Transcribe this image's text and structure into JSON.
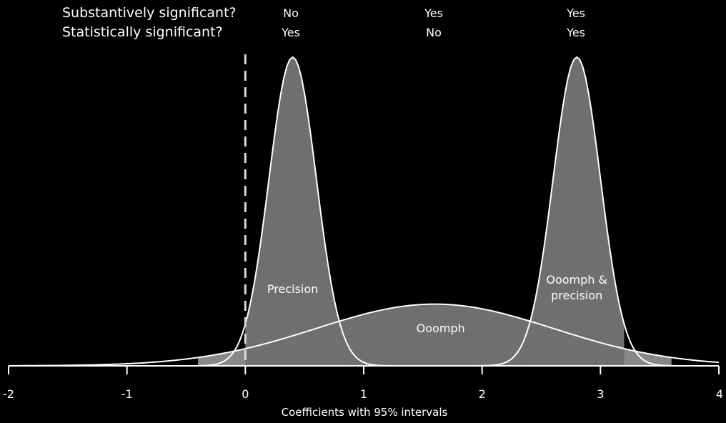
{
  "header": {
    "row1_label": "Substantively significant?",
    "row2_label": "Statistically significant?",
    "columns": [
      {
        "center": 0.4,
        "substantive": "No",
        "statistical": "Yes"
      },
      {
        "center": 1.6,
        "substantive": "Yes",
        "statistical": "No"
      },
      {
        "center": 2.8,
        "substantive": "Yes",
        "statistical": "Yes"
      }
    ]
  },
  "chart_data": {
    "type": "area",
    "xlabel": "Coefficients with 95% intervals",
    "xlim": [
      -2,
      4
    ],
    "ticks": [
      -2,
      -1,
      0,
      1,
      2,
      3,
      4
    ],
    "tick_labels": [
      "-2",
      "-1",
      "0",
      "1",
      "2",
      "3",
      "4"
    ],
    "reference_line_x": 0,
    "series": [
      {
        "label": "Precision",
        "mean": 0.4,
        "sd": 0.2,
        "interval": [
          0.0,
          0.8
        ],
        "relative_height": 1.0
      },
      {
        "label": "Ooomph",
        "mean": 1.6,
        "sd": 1.0,
        "interval": [
          -0.4,
          3.6
        ],
        "relative_height": 0.2
      },
      {
        "label": "Ooomph & precision",
        "label_lines": [
          "Ooomph &",
          "precision"
        ],
        "mean": 2.8,
        "sd": 0.2,
        "interval": [
          2.4,
          3.2
        ],
        "relative_height": 1.0
      }
    ]
  },
  "colors": {
    "background": "#000000",
    "fill_inside_interval": "#6e6e6e",
    "fill_outside_interval": "#a0a0a0",
    "curve": "#ffffff",
    "axis": "#ffffff",
    "reference_line": "#d9d9d9"
  }
}
